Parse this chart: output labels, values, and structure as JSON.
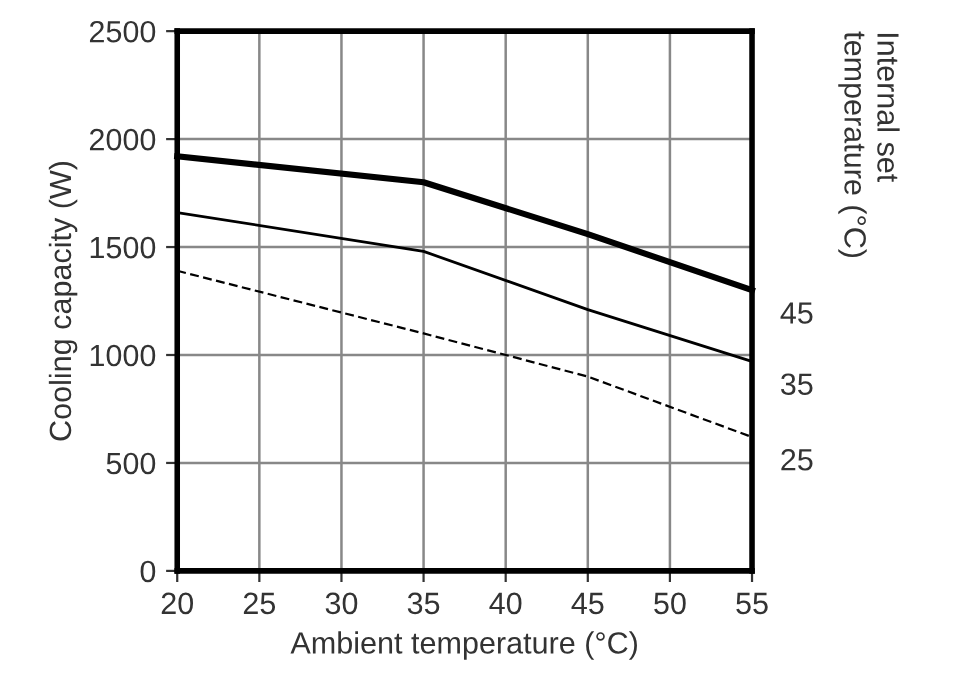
{
  "chart_data": {
    "type": "line",
    "xlabel": "Ambient temperature (°C)",
    "ylabel": "Cooling capacity (W)",
    "y2label": "Internal set\ntemperature (°C)",
    "x": [
      20,
      35,
      45,
      55
    ],
    "series": [
      {
        "name": "45",
        "color": "#000000",
        "values": [
          1920,
          1800,
          1560,
          1300
        ],
        "line_style": "solid"
      },
      {
        "name": "35",
        "color": "#000000",
        "values": [
          1660,
          1480,
          1210,
          970
        ],
        "line_style": "solid"
      },
      {
        "name": "25",
        "color": "#000000",
        "values": [
          1390,
          1100,
          900,
          620
        ],
        "line_style": "dashed"
      }
    ],
    "xlim": [
      20,
      55
    ],
    "xticks": [
      20,
      25,
      30,
      35,
      40,
      45,
      50,
      55
    ],
    "ylim": [
      0,
      2500
    ],
    "yticks": [
      0,
      500,
      1000,
      1500,
      2000,
      2500
    ],
    "grid": true,
    "marker": "none"
  }
}
